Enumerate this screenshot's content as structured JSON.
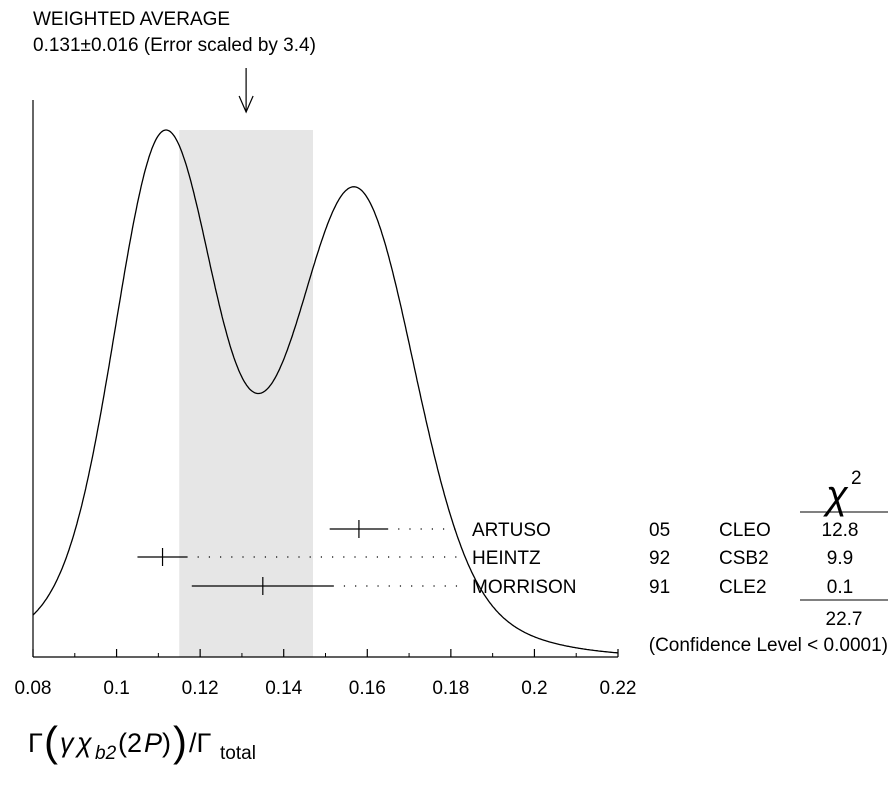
{
  "chart_data": {
    "type": "ideogram",
    "title_line1": "WEIGHTED AVERAGE",
    "title_line2": "0.131±0.016 (Error scaled by 3.4)",
    "xlabel": {
      "main": "Γ",
      "open_paren": "(",
      "gamma": "γ",
      "chi": "χ",
      "sub": "b2",
      "arg": "(2",
      "arg_p": "P",
      "arg_close": ")",
      "close_paren": ")",
      "slash": "/Γ",
      "sub_total": "total"
    },
    "xlim": [
      0.08,
      0.22
    ],
    "x_ticks": [
      0.08,
      0.1,
      0.12,
      0.14,
      0.16,
      0.18,
      0.2,
      0.22
    ],
    "x_tick_labels": [
      "0.08",
      "0.1",
      "0.12",
      "0.14",
      "0.16",
      "0.18",
      "0.2",
      "0.22"
    ],
    "weighted_average": {
      "value": 0.131,
      "error": 0.016,
      "band": [
        0.115,
        0.147
      ]
    },
    "chi2_header": "χ",
    "chi2_header_exp": "2",
    "measurements": [
      {
        "author": "ARTUSO",
        "year": "05",
        "experiment": "CLEO",
        "chi2": "12.8",
        "value": 0.158,
        "low": 0.151,
        "high": 0.165
      },
      {
        "author": "HEINTZ",
        "year": "92",
        "experiment": "CSB2",
        "chi2": "9.9",
        "value": 0.111,
        "low": 0.105,
        "high": 0.117
      },
      {
        "author": "MORRISON",
        "year": "91",
        "experiment": "CLE2",
        "chi2": "0.1",
        "value": 0.135,
        "low": 0.118,
        "high": 0.152
      }
    ],
    "chi2_total": "22.7",
    "confidence_level": "(Confidence Level < 0.0001)",
    "band_color": "#e6e6e6",
    "line_color": "#000000"
  }
}
